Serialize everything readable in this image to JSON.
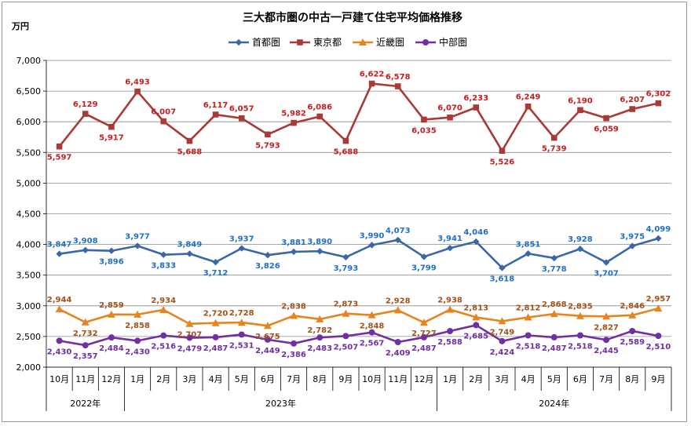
{
  "chart_data": {
    "type": "line",
    "title": "三大都市圏の中古一戸建て住宅平均価格推移",
    "unit_label": "万円",
    "ylim": [
      2000,
      7000
    ],
    "y_ticks": [
      "2,000",
      "2,500",
      "3,000",
      "3,500",
      "4,000",
      "4,500",
      "5,000",
      "5,500",
      "6,000",
      "6,500",
      "7,000"
    ],
    "y_tick_values": [
      2000,
      2500,
      3000,
      3500,
      4000,
      4500,
      5000,
      5500,
      6000,
      6500,
      7000
    ],
    "grid": "horizontal",
    "legend_position": "top",
    "categories": [
      "10月",
      "11月",
      "12月",
      "1月",
      "2月",
      "3月",
      "4月",
      "5月",
      "6月",
      "7月",
      "8月",
      "9月",
      "10月",
      "11月",
      "12月",
      "1月",
      "2月",
      "3月",
      "4月",
      "5月",
      "6月",
      "7月",
      "8月",
      "9月"
    ],
    "year_groups": [
      {
        "label": "2022年",
        "count": 3
      },
      {
        "label": "2023年",
        "count": 12
      },
      {
        "label": "2024年",
        "count": 9
      }
    ],
    "series": [
      {
        "name": "首都圏",
        "color": "#3a68a6",
        "marker": "diamond",
        "values": [
          3847,
          3908,
          3896,
          3977,
          3833,
          3849,
          3712,
          3937,
          3826,
          3881,
          3890,
          3793,
          3990,
          4073,
          3799,
          3941,
          4046,
          3618,
          3851,
          3778,
          3928,
          3707,
          3975,
          4099
        ],
        "labels": [
          "3,847",
          "3,908",
          "3,896",
          "3,977",
          "3,833",
          "3,849",
          "3,712",
          "3,937",
          "3,826",
          "3,881",
          "3,890",
          "3,793",
          "3,990",
          "4,073",
          "3,799",
          "3,941",
          "4,046",
          "3,618",
          "3,851",
          "3,778",
          "3,928",
          "3,707",
          "3,975",
          "4,099"
        ],
        "label_color": "#1f6fc4"
      },
      {
        "name": "東京都",
        "color": "#a83a38",
        "marker": "square",
        "values": [
          5597,
          6129,
          5917,
          6493,
          6007,
          5688,
          6117,
          6057,
          5793,
          5982,
          6086,
          5688,
          6622,
          6578,
          6035,
          6070,
          6233,
          5526,
          6249,
          5739,
          6190,
          6059,
          6207,
          6302
        ],
        "labels": [
          "5,597",
          "6,129",
          "5,917",
          "6,493",
          "6,007",
          "5,688",
          "6,117",
          "6,057",
          "5,793",
          "5,982",
          "6,086",
          "5,688",
          "6,622",
          "6,578",
          "6,035",
          "6,070",
          "6,233",
          "5,526",
          "6,249",
          "5,739",
          "6,190",
          "6,059",
          "6,207",
          "6,302"
        ],
        "label_color": "#c0201f"
      },
      {
        "name": "近畿圏",
        "color": "#e6841e",
        "marker": "triangle",
        "values": [
          2944,
          2732,
          2859,
          2858,
          2934,
          2707,
          2720,
          2728,
          2675,
          2838,
          2782,
          2873,
          2848,
          2928,
          2727,
          2938,
          2813,
          2749,
          2812,
          2868,
          2835,
          2827,
          2846,
          2957
        ],
        "labels": [
          "2,944",
          "2,732",
          "2,859",
          "2,858",
          "2,934",
          "2,707",
          "2,720",
          "2,728",
          "2,675",
          "2,838",
          "2,782",
          "2,873",
          "2,848",
          "2,928",
          "2,727",
          "2,938",
          "2,813",
          "2,749",
          "2,812",
          "2,868",
          "2,835",
          "2,827",
          "2,846",
          "2,957"
        ],
        "label_color": "#a0521a"
      },
      {
        "name": "中部圏",
        "color": "#7030a0",
        "marker": "circle",
        "values": [
          2430,
          2357,
          2484,
          2430,
          2516,
          2479,
          2487,
          2531,
          2449,
          2386,
          2483,
          2507,
          2567,
          2409,
          2487,
          2588,
          2685,
          2424,
          2518,
          2487,
          2518,
          2445,
          2589,
          2510
        ],
        "labels": [
          "2,430",
          "2,357",
          "2,484",
          "2,430",
          "2,516",
          "2,479",
          "2,487",
          "2,531",
          "2,449",
          "2,386",
          "2,483",
          "2,507",
          "2,567",
          "2,409",
          "2,487",
          "2,588",
          "2,685",
          "2,424",
          "2,518",
          "2,487",
          "2,518",
          "2,445",
          "2,589",
          "2,510"
        ],
        "label_color": "#7030a0"
      }
    ]
  }
}
